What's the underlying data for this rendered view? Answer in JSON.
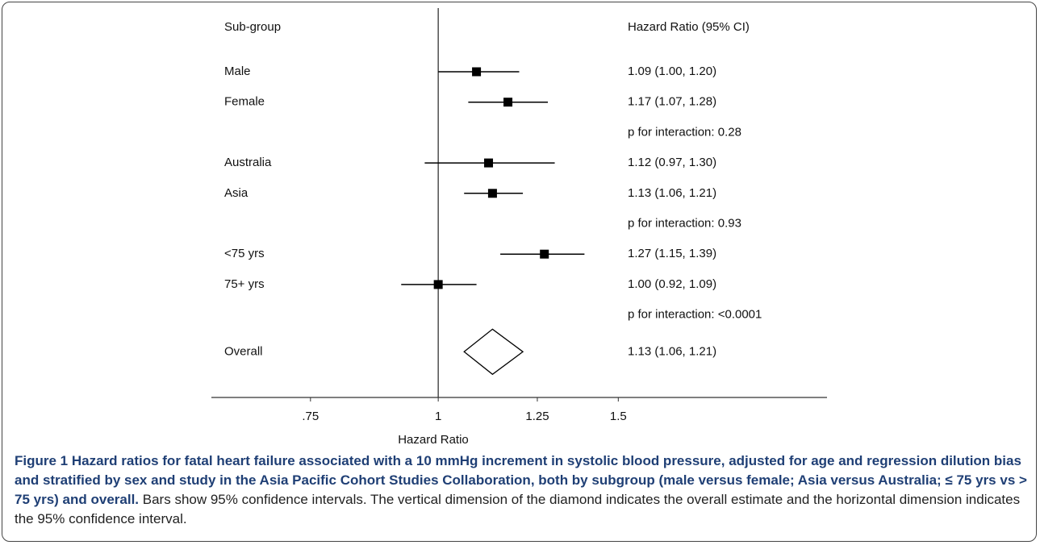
{
  "chart_data": {
    "type": "forest",
    "column_headers": [
      "Sub-group",
      "Hazard Ratio (95% CI)"
    ],
    "categories": [
      "Male",
      "Female",
      "Australia",
      "Asia",
      "<75 yrs",
      "75+ yrs"
    ],
    "values": [
      1.09,
      1.17,
      1.12,
      1.13,
      1.27,
      1.0
    ],
    "lower": [
      1.0,
      1.07,
      0.97,
      1.06,
      1.15,
      0.92
    ],
    "upper": [
      1.2,
      1.28,
      1.3,
      1.21,
      1.39,
      1.09
    ],
    "value_labels": [
      "1.09 (1.00, 1.20)",
      "1.17 (1.07, 1.28)",
      "1.12 (0.97, 1.30)",
      "1.13 (1.06, 1.21)",
      "1.27 (1.15, 1.39)",
      "1.00 (0.92, 1.09)"
    ],
    "annotations": [
      "p for interaction: 0.28",
      "p for interaction: 0.93",
      "p for interaction: <0.0001"
    ],
    "overall": {
      "name": "Overall",
      "value": 1.13,
      "lower": 1.06,
      "upper": 1.21,
      "value_label": "1.13 (1.06, 1.21)"
    },
    "reference": 1,
    "xlabel": "Hazard Ratio",
    "log_x": true,
    "xlim": [
      0.6,
      2.4
    ],
    "xticks": [
      {
        "value": 0.75,
        "label": ".75"
      },
      1,
      1.25,
      1.5
    ],
    "color": "#000000"
  },
  "caption": {
    "bold": "Figure 1 Hazard ratios for fatal heart failure associated with a 10 mmHg increment in systolic blood pressure, adjusted for age and regression dilution bias and stratified by sex and study in the Asia Pacific Cohort Studies Collaboration, both by subgroup (male versus female; Asia versus Australia; ≤ 75 yrs vs > 75 yrs) and overall.",
    "text": "Bars show 95% confidence intervals. The vertical dimension of the diamond indicates the overall estimate and the horizontal dimension indicates the 95% confidence interval."
  }
}
